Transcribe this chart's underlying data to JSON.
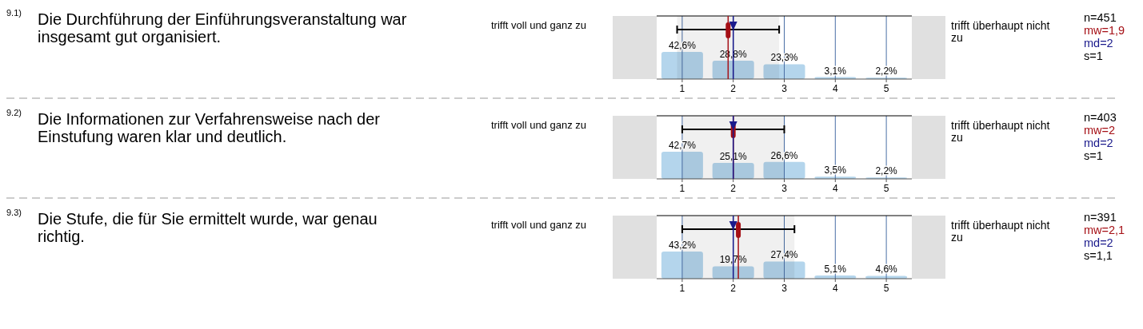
{
  "chart_data": [
    {
      "type": "bar",
      "annotations": [
        "9.1)",
        "Die Durchführung der Einführungsveranstaltung war insgesamt gut organisiert.",
        "trifft voll und ganz zu",
        "trifft überhaupt nicht zu",
        "n=451"
      ],
      "x": [
        1,
        2,
        3,
        4,
        5
      ],
      "xlim": [
        0.5,
        5.5
      ],
      "xticks": [
        1,
        2,
        3,
        4,
        5
      ],
      "grid": "x",
      "color": "#b4d5ec",
      "values": [
        42.6,
        28.8,
        23.3,
        3.1,
        2.2
      ],
      "value_labels": [
        "42,6%",
        "28,8%",
        "23,3%",
        "3,1%",
        "2,2%"
      ],
      "ref_lines": [
        {
          "axis": "x",
          "value": 1.9,
          "label": "mw=1,9",
          "color": "#a50f15"
        },
        {
          "axis": "x",
          "value": 2,
          "label": "md=2",
          "color": "#1a1a8c"
        }
      ],
      "bands": [
        {
          "axis": "x",
          "from": 0.9,
          "to": 2.9,
          "label": "s=1",
          "color": "#000000"
        }
      ]
    },
    {
      "type": "bar",
      "annotations": [
        "9.2)",
        "Die Informationen zur Verfahrensweise nach der Einstufung waren klar und deutlich.",
        "trifft voll und ganz zu",
        "trifft überhaupt nicht zu",
        "n=403"
      ],
      "x": [
        1,
        2,
        3,
        4,
        5
      ],
      "xlim": [
        0.5,
        5.5
      ],
      "xticks": [
        1,
        2,
        3,
        4,
        5
      ],
      "grid": "x",
      "color": "#b4d5ec",
      "values": [
        42.7,
        25.1,
        26.6,
        3.5,
        2.2
      ],
      "value_labels": [
        "42,7%",
        "25,1%",
        "26,6%",
        "3,5%",
        "2,2%"
      ],
      "ref_lines": [
        {
          "axis": "x",
          "value": 2,
          "label": "mw=2",
          "color": "#a50f15"
        },
        {
          "axis": "x",
          "value": 2,
          "label": "md=2",
          "color": "#1a1a8c"
        }
      ],
      "bands": [
        {
          "axis": "x",
          "from": 1,
          "to": 3,
          "label": "s=1",
          "color": "#000000"
        }
      ]
    },
    {
      "type": "bar",
      "annotations": [
        "9.3)",
        "Die Stufe, die für Sie ermittelt wurde, war genau richtig.",
        "trifft voll und ganz zu",
        "trifft überhaupt nicht zu",
        "n=391"
      ],
      "x": [
        1,
        2,
        3,
        4,
        5
      ],
      "xlim": [
        0.5,
        5.5
      ],
      "xticks": [
        1,
        2,
        3,
        4,
        5
      ],
      "grid": "x",
      "color": "#b4d5ec",
      "values": [
        43.2,
        19.7,
        27.4,
        5.1,
        4.6
      ],
      "value_labels": [
        "43,2%",
        "19,7%",
        "27,4%",
        "5,1%",
        "4,6%"
      ],
      "ref_lines": [
        {
          "axis": "x",
          "value": 2.1,
          "label": "mw=2,1",
          "color": "#a50f15"
        },
        {
          "axis": "x",
          "value": 2,
          "label": "md=2",
          "color": "#1a1a8c"
        }
      ],
      "bands": [
        {
          "axis": "x",
          "from": 1,
          "to": 3.2,
          "label": "s=1,1",
          "color": "#000000"
        }
      ]
    }
  ]
}
